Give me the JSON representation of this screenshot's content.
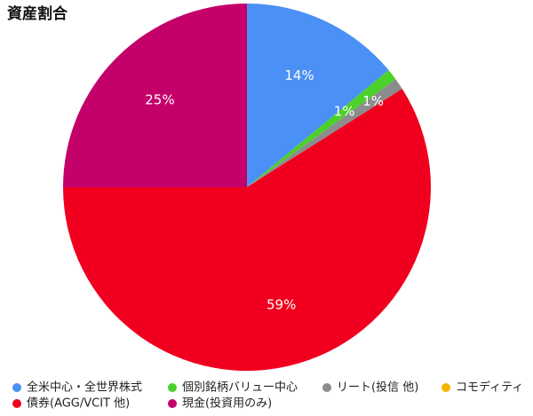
{
  "chart_data": {
    "type": "pie",
    "title": "資産割合",
    "categories": [
      "全米中心・全世界株式",
      "個別銘柄バリュー中心",
      "リート(投信 他)",
      "コモディティ",
      "債券(AGG/VCIT 他)",
      "現金(投資用のみ)"
    ],
    "values": [
      14,
      1,
      1,
      0,
      59,
      25
    ],
    "value_labels": [
      "14%",
      "1%",
      "1%",
      null,
      "59%",
      "25%"
    ],
    "colors": [
      "#4a90f5",
      "#4cd02a",
      "#8c8c8c",
      "#f5b400",
      "#f0001e",
      "#c4006a"
    ],
    "legend": "bottom"
  }
}
